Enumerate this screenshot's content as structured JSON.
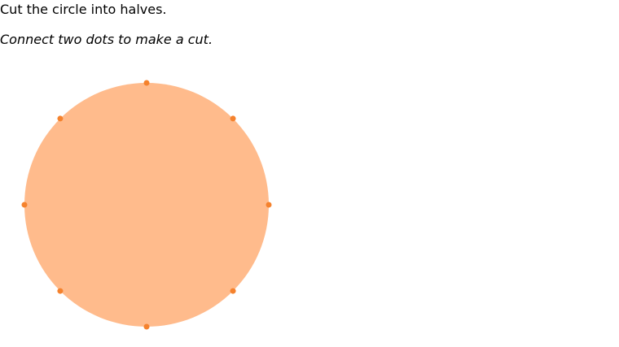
{
  "question": {
    "prompt": "Cut the circle into halves.",
    "instruction": "Connect two dots to make a cut."
  },
  "shape": {
    "type": "circle",
    "fill_color": "#ffbb8c",
    "dot_color": "#f5822d",
    "dot_count": 8
  }
}
